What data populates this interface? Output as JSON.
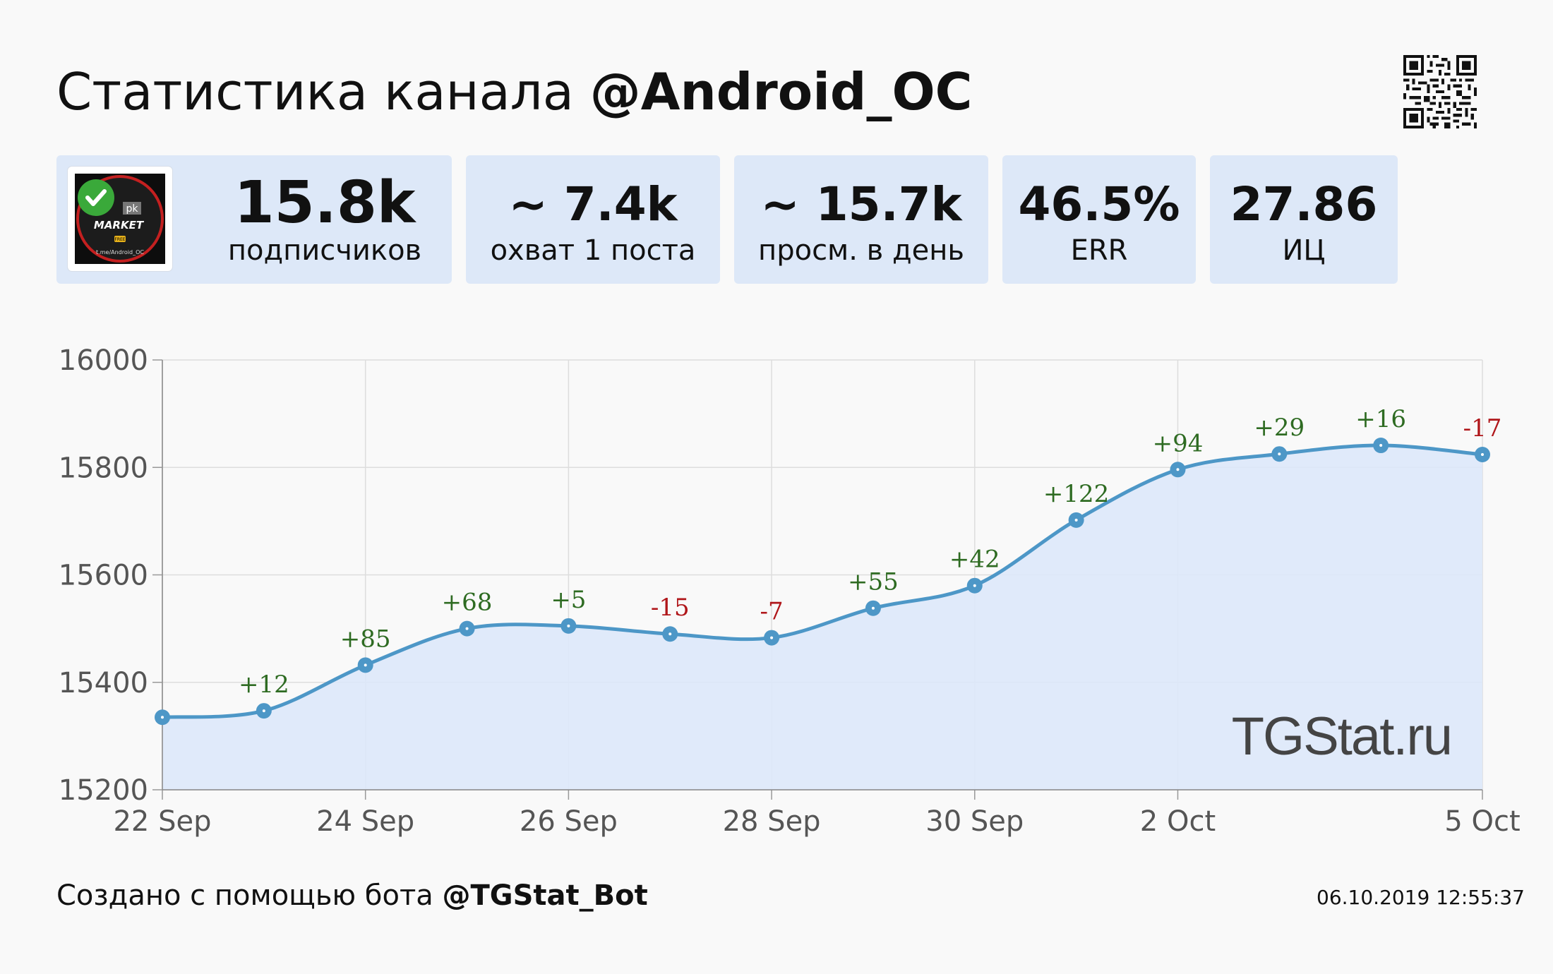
{
  "header": {
    "title_prefix": "Статистика канала",
    "channel": "@Android_OC"
  },
  "stats": [
    {
      "value": "15.8k",
      "label": "подписчиков"
    },
    {
      "value": "~ 7.4k",
      "label": "охват 1 поста"
    },
    {
      "value": "~ 15.7k",
      "label": "просм. в день"
    },
    {
      "value": "46.5%",
      "label": "ERR"
    },
    {
      "value": "27.86",
      "label": "ИЦ"
    }
  ],
  "avatar": {
    "badge": "pk",
    "name": "MARKET",
    "tag": "FREE",
    "handle": "t.me/Android_OC"
  },
  "chart_data": {
    "type": "area",
    "x": [
      "22 Sep",
      "23 Sep",
      "24 Sep",
      "25 Sep",
      "26 Sep",
      "27 Sep",
      "28 Sep",
      "29 Sep",
      "30 Sep",
      "1 Oct",
      "2 Oct",
      "3 Oct",
      "4 Oct",
      "5 Oct"
    ],
    "values": [
      15335,
      15347,
      15432,
      15500,
      15505,
      15490,
      15483,
      15538,
      15580,
      15702,
      15796,
      15825,
      15841,
      15824
    ],
    "deltas": [
      "",
      "+12",
      "+85",
      "+68",
      "+5",
      "-15",
      "-7",
      "+55",
      "+42",
      "+122",
      "+94",
      "+29",
      "+16",
      "-17"
    ],
    "x_ticks": [
      {
        "index": 0,
        "label": "22 Sep"
      },
      {
        "index": 2,
        "label": "24 Sep"
      },
      {
        "index": 4,
        "label": "26 Sep"
      },
      {
        "index": 6,
        "label": "28 Sep"
      },
      {
        "index": 8,
        "label": "30 Sep"
      },
      {
        "index": 10,
        "label": "2 Oct"
      },
      {
        "index": 13,
        "label": "5 Oct"
      }
    ],
    "y_ticks": [
      15200,
      15400,
      15600,
      15800,
      16000
    ],
    "ylim": [
      15200,
      16000
    ],
    "grid": true,
    "watermark": "TGStat.ru",
    "colors": {
      "line": "#4d97c7",
      "fill": "#dde8fa",
      "grid": "#dddddd",
      "positive": "#2e6b22",
      "negative": "#b0161a"
    }
  },
  "footer": {
    "created_prefix": "Создано с помощью бота",
    "bot": "@TGStat_Bot",
    "timestamp": "06.10.2019 12:55:37"
  }
}
